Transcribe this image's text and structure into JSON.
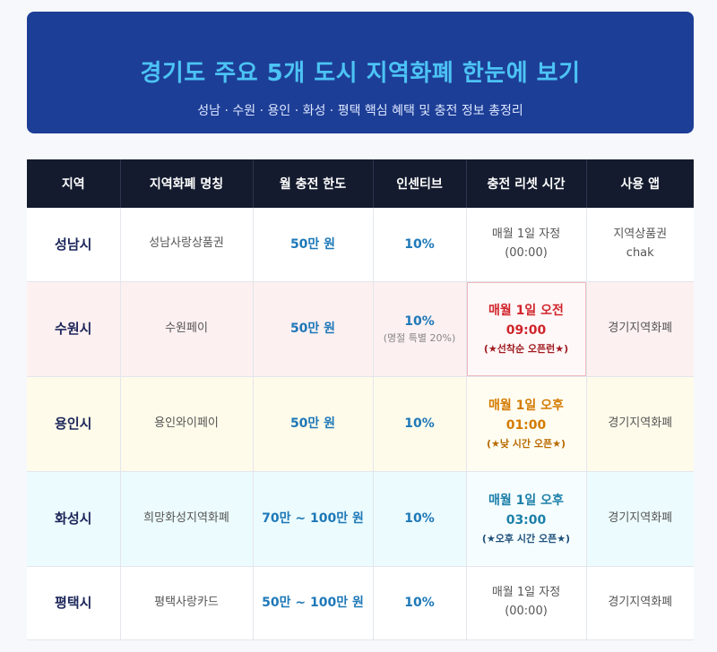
{
  "banner": {
    "title": "경기도 주요 5개 도시 지역화폐 한눈에 보기",
    "subtitle": "성남 · 수원 · 용인 · 화성 · 평택 핵심 혜택 및 충전 정보 총정리"
  },
  "table": {
    "headers": [
      "지역",
      "지역화폐 명칭",
      "월 충전 한도",
      "인센티브",
      "충전 리셋 시간",
      "사용 앱"
    ],
    "rows": [
      {
        "region": "성남시",
        "currency": "성남사랑상품권",
        "limit": "50만 원",
        "incentive": "10%",
        "incentive_note": "",
        "reset_line1": "매월 1일 자정",
        "reset_line2": "(00:00)",
        "reset_note": "",
        "app_line1": "지역상품권",
        "app_line2": "chak"
      },
      {
        "region": "수원시",
        "currency": "수원페이",
        "limit": "50만 원",
        "incentive": "10%",
        "incentive_note": "(명절 특별 20%)",
        "reset_line1": "매월 1일 오전",
        "reset_line2": "09:00",
        "reset_note": "(★선착순 오픈런★)",
        "app_line1": "경기지역화폐",
        "app_line2": ""
      },
      {
        "region": "용인시",
        "currency": "용인와이페이",
        "limit": "50만 원",
        "incentive": "10%",
        "incentive_note": "",
        "reset_line1": "매월 1일 오후",
        "reset_line2": "01:00",
        "reset_note": "(★낮 시간 오픈★)",
        "app_line1": "경기지역화폐",
        "app_line2": ""
      },
      {
        "region": "화성시",
        "currency": "희망화성지역화폐",
        "limit": "70만 ~ 100만 원",
        "incentive": "10%",
        "incentive_note": "",
        "reset_line1": "매월 1일 오후",
        "reset_line2": "03:00",
        "reset_note": "(★오후 시간 오픈★)",
        "app_line1": "경기지역화폐",
        "app_line2": ""
      },
      {
        "region": "평택시",
        "currency": "평택사랑카드",
        "limit": "50만 ~ 100만 원",
        "incentive": "10%",
        "incentive_note": "",
        "reset_line1": "매월 1일 자정",
        "reset_line2": "(00:00)",
        "reset_note": "",
        "app_line1": "경기지역화폐",
        "app_line2": ""
      }
    ]
  }
}
